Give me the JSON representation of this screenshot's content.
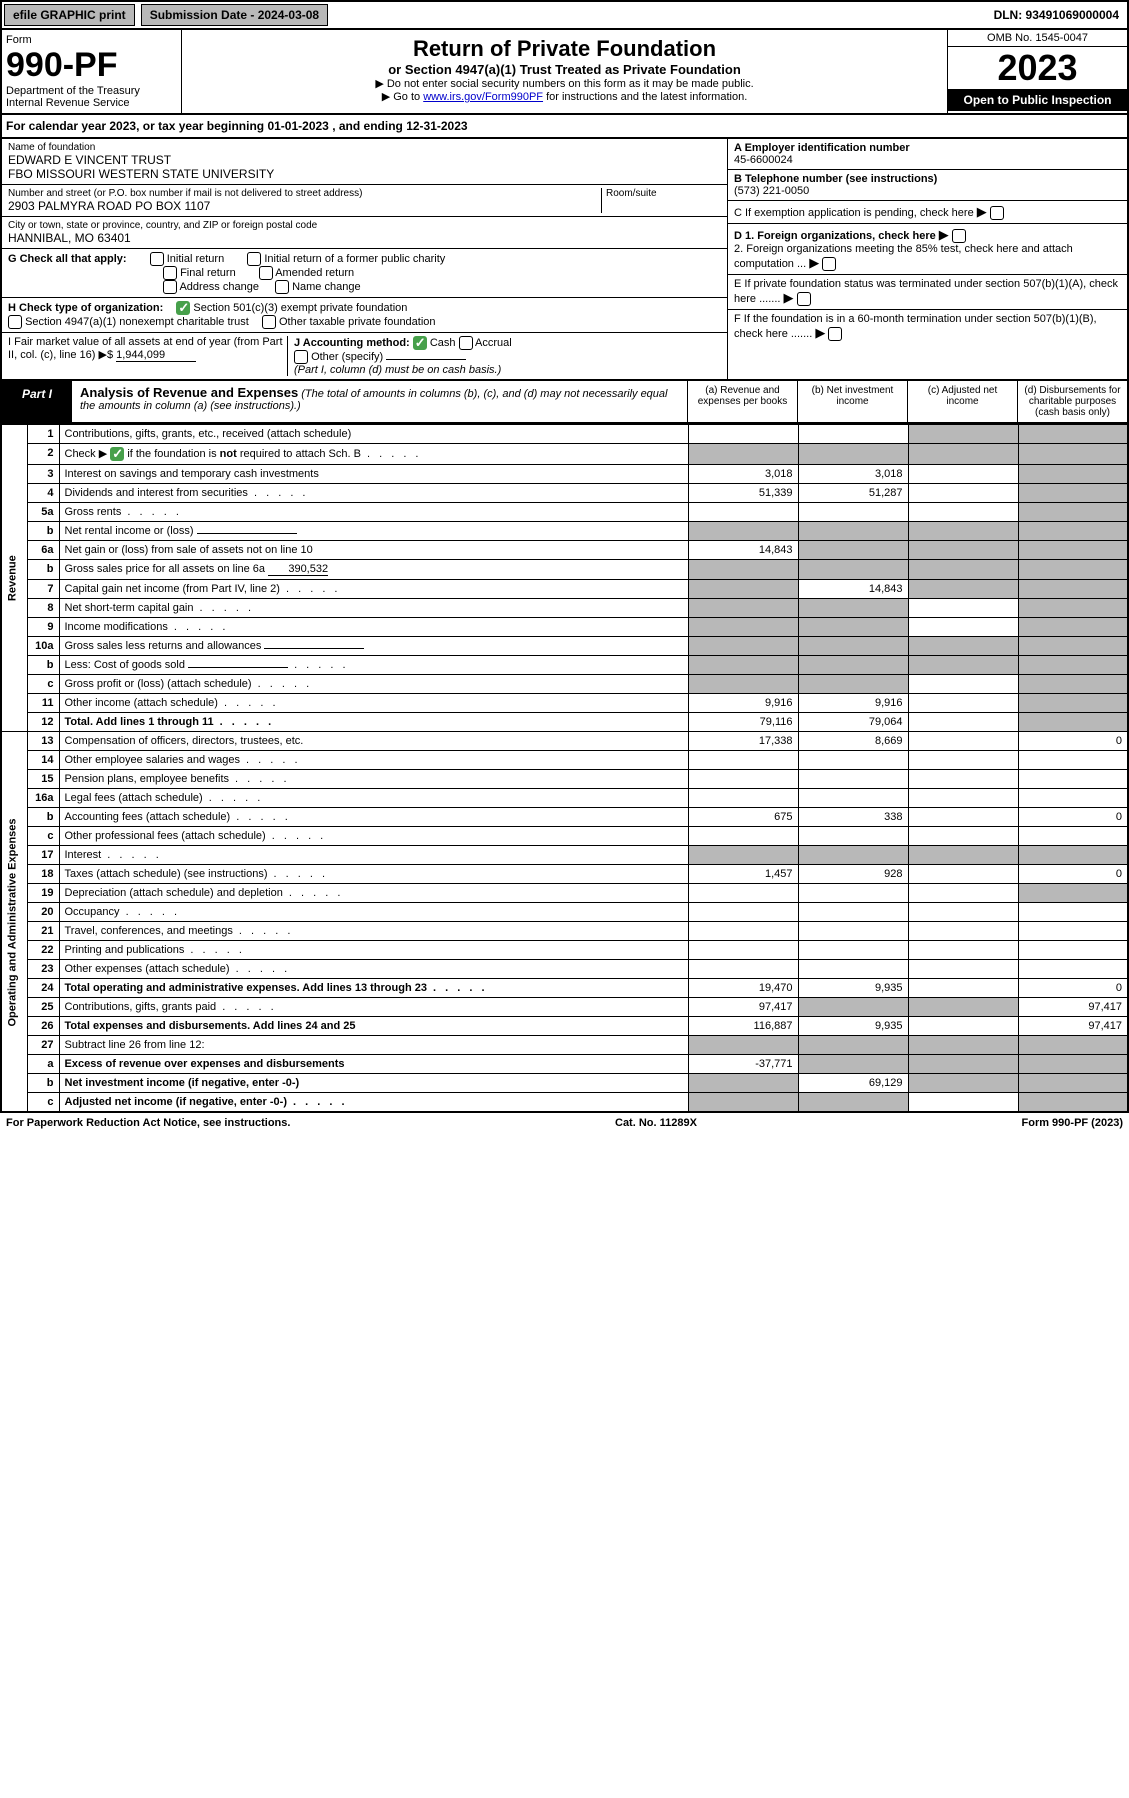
{
  "topbar": {
    "efile": "efile GRAPHIC print",
    "sub_date_label": "Submission Date - 2024-03-08",
    "dln": "DLN: 93491069000004"
  },
  "header": {
    "form_word": "Form",
    "form_num": "990-PF",
    "dept1": "Department of the Treasury",
    "dept2": "Internal Revenue Service",
    "title": "Return of Private Foundation",
    "subtitle": "or Section 4947(a)(1) Trust Treated as Private Foundation",
    "note1": "▶ Do not enter social security numbers on this form as it may be made public.",
    "note2_pre": "▶ Go to ",
    "note2_link": "www.irs.gov/Form990PF",
    "note2_post": " for instructions and the latest information.",
    "omb": "OMB No. 1545-0047",
    "year": "2023",
    "open": "Open to Public Inspection"
  },
  "cal_year": {
    "pre": "For calendar year 2023, or tax year beginning ",
    "begin": "01-01-2023",
    "mid": " , and ending ",
    "end": "12-31-2023"
  },
  "info": {
    "name_lbl": "Name of foundation",
    "name1": "EDWARD E VINCENT TRUST",
    "name2": "FBO MISSOURI WESTERN STATE UNIVERSITY",
    "addr_lbl": "Number and street (or P.O. box number if mail is not delivered to street address)",
    "addr": "2903 PALMYRA ROAD PO BOX 1107",
    "room_lbl": "Room/suite",
    "cityzip_lbl": "City or town, state or province, country, and ZIP or foreign postal code",
    "cityzip": "HANNIBAL, MO  63401",
    "a_lbl": "A Employer identification number",
    "a_val": "45-6600024",
    "b_lbl": "B Telephone number (see instructions)",
    "b_val": "(573) 221-0050",
    "c_lbl": "C If exemption application is pending, check here",
    "d1_lbl": "D 1. Foreign organizations, check here",
    "d2_lbl": "2. Foreign organizations meeting the 85% test, check here and attach computation ...",
    "e_lbl": "E If private foundation status was terminated under section 507(b)(1)(A), check here .......",
    "f_lbl": "F If the foundation is in a 60-month termination under section 507(b)(1)(B), check here .......",
    "g_lbl": "G Check all that apply:",
    "g_opts": [
      "Initial return",
      "Initial return of a former public charity",
      "Final return",
      "Amended return",
      "Address change",
      "Name change"
    ],
    "h_lbl": "H Check type of organization:",
    "h_opt1": "Section 501(c)(3) exempt private foundation",
    "h_opt2": "Section 4947(a)(1) nonexempt charitable trust",
    "h_opt3": "Other taxable private foundation",
    "i_lbl": "I Fair market value of all assets at end of year (from Part II, col. (c), line 16)",
    "i_val": "1,944,099",
    "j_lbl": "J Accounting method:",
    "j_cash": "Cash",
    "j_accrual": "Accrual",
    "j_other": "Other (specify)",
    "j_note": "(Part I, column (d) must be on cash basis.)"
  },
  "part1": {
    "label": "Part I",
    "title": "Analysis of Revenue and Expenses",
    "title_it": "(The total of amounts in columns (b), (c), and (d) may not necessarily equal the amounts in column (a) (see instructions).)",
    "col_a": "(a) Revenue and expenses per books",
    "col_b": "(b) Net investment income",
    "col_c": "(c) Adjusted net income",
    "col_d": "(d) Disbursements for charitable purposes (cash basis only)"
  },
  "side_labels": {
    "revenue": "Revenue",
    "op_admin": "Operating and Administrative Expenses"
  },
  "rows": [
    {
      "n": "1",
      "d": "Contributions, gifts, grants, etc., received (attach schedule)",
      "a": "",
      "b": "",
      "c": "shade",
      "dd": "shade"
    },
    {
      "n": "2",
      "d": "Check ▶ ☑ if the foundation is not required to attach Sch. B",
      "a": "shade",
      "b": "shade",
      "c": "shade",
      "dd": "shade",
      "checkmark": true,
      "dots": true
    },
    {
      "n": "3",
      "d": "Interest on savings and temporary cash investments",
      "a": "3,018",
      "b": "3,018",
      "c": "",
      "dd": "shade"
    },
    {
      "n": "4",
      "d": "Dividends and interest from securities",
      "a": "51,339",
      "b": "51,287",
      "c": "",
      "dd": "shade",
      "dots": true
    },
    {
      "n": "5a",
      "d": "Gross rents",
      "a": "",
      "b": "",
      "c": "",
      "dd": "shade",
      "dots": true
    },
    {
      "n": "b",
      "d": "Net rental income or (loss)",
      "a": "shade",
      "b": "shade",
      "c": "shade",
      "dd": "shade",
      "inline": true
    },
    {
      "n": "6a",
      "d": "Net gain or (loss) from sale of assets not on line 10",
      "a": "14,843",
      "b": "shade",
      "c": "shade",
      "dd": "shade"
    },
    {
      "n": "b",
      "d": "Gross sales price for all assets on line 6a",
      "a": "shade",
      "b": "shade",
      "c": "shade",
      "dd": "shade",
      "inline_val": "390,532"
    },
    {
      "n": "7",
      "d": "Capital gain net income (from Part IV, line 2)",
      "a": "shade",
      "b": "14,843",
      "c": "shade",
      "dd": "shade",
      "dots": true
    },
    {
      "n": "8",
      "d": "Net short-term capital gain",
      "a": "shade",
      "b": "shade",
      "c": "",
      "dd": "shade",
      "dots": true
    },
    {
      "n": "9",
      "d": "Income modifications",
      "a": "shade",
      "b": "shade",
      "c": "",
      "dd": "shade",
      "dots": true
    },
    {
      "n": "10a",
      "d": "Gross sales less returns and allowances",
      "a": "shade",
      "b": "shade",
      "c": "shade",
      "dd": "shade",
      "inline": true
    },
    {
      "n": "b",
      "d": "Less: Cost of goods sold",
      "a": "shade",
      "b": "shade",
      "c": "shade",
      "dd": "shade",
      "inline": true,
      "dots": true
    },
    {
      "n": "c",
      "d": "Gross profit or (loss) (attach schedule)",
      "a": "shade",
      "b": "shade",
      "c": "",
      "dd": "shade",
      "dots": true
    },
    {
      "n": "11",
      "d": "Other income (attach schedule)",
      "a": "9,916",
      "b": "9,916",
      "c": "",
      "dd": "shade",
      "dots": true
    },
    {
      "n": "12",
      "d": "Total. Add lines 1 through 11",
      "a": "79,116",
      "b": "79,064",
      "c": "",
      "dd": "shade",
      "bold": true,
      "dots": true
    },
    {
      "n": "13",
      "d": "Compensation of officers, directors, trustees, etc.",
      "a": "17,338",
      "b": "8,669",
      "c": "",
      "dd": "0"
    },
    {
      "n": "14",
      "d": "Other employee salaries and wages",
      "a": "",
      "b": "",
      "c": "",
      "dd": "",
      "dots": true
    },
    {
      "n": "15",
      "d": "Pension plans, employee benefits",
      "a": "",
      "b": "",
      "c": "",
      "dd": "",
      "dots": true
    },
    {
      "n": "16a",
      "d": "Legal fees (attach schedule)",
      "a": "",
      "b": "",
      "c": "",
      "dd": "",
      "dots": true
    },
    {
      "n": "b",
      "d": "Accounting fees (attach schedule)",
      "a": "675",
      "b": "338",
      "c": "",
      "dd": "0",
      "dots": true
    },
    {
      "n": "c",
      "d": "Other professional fees (attach schedule)",
      "a": "",
      "b": "",
      "c": "",
      "dd": "",
      "dots": true
    },
    {
      "n": "17",
      "d": "Interest",
      "a": "shade",
      "b": "shade",
      "c": "shade",
      "dd": "shade",
      "dots": true
    },
    {
      "n": "18",
      "d": "Taxes (attach schedule) (see instructions)",
      "a": "1,457",
      "b": "928",
      "c": "",
      "dd": "0",
      "dots": true
    },
    {
      "n": "19",
      "d": "Depreciation (attach schedule) and depletion",
      "a": "",
      "b": "",
      "c": "",
      "dd": "shade",
      "dots": true
    },
    {
      "n": "20",
      "d": "Occupancy",
      "a": "",
      "b": "",
      "c": "",
      "dd": "",
      "dots": true
    },
    {
      "n": "21",
      "d": "Travel, conferences, and meetings",
      "a": "",
      "b": "",
      "c": "",
      "dd": "",
      "dots": true
    },
    {
      "n": "22",
      "d": "Printing and publications",
      "a": "",
      "b": "",
      "c": "",
      "dd": "",
      "dots": true
    },
    {
      "n": "23",
      "d": "Other expenses (attach schedule)",
      "a": "",
      "b": "",
      "c": "",
      "dd": "",
      "dots": true
    },
    {
      "n": "24",
      "d": "Total operating and administrative expenses. Add lines 13 through 23",
      "a": "19,470",
      "b": "9,935",
      "c": "",
      "dd": "0",
      "bold": true,
      "dots": true
    },
    {
      "n": "25",
      "d": "Contributions, gifts, grants paid",
      "a": "97,417",
      "b": "shade",
      "c": "shade",
      "dd": "97,417",
      "dots": true
    },
    {
      "n": "26",
      "d": "Total expenses and disbursements. Add lines 24 and 25",
      "a": "116,887",
      "b": "9,935",
      "c": "",
      "dd": "97,417",
      "bold": true
    },
    {
      "n": "27",
      "d": "Subtract line 26 from line 12:",
      "a": "shade",
      "b": "shade",
      "c": "shade",
      "dd": "shade"
    },
    {
      "n": "a",
      "d": "Excess of revenue over expenses and disbursements",
      "a": "-37,771",
      "b": "shade",
      "c": "shade",
      "dd": "shade",
      "bold": true
    },
    {
      "n": "b",
      "d": "Net investment income (if negative, enter -0-)",
      "a": "shade",
      "b": "69,129",
      "c": "shade",
      "dd": "shade",
      "bold": true
    },
    {
      "n": "c",
      "d": "Adjusted net income (if negative, enter -0-)",
      "a": "shade",
      "b": "shade",
      "c": "",
      "dd": "shade",
      "bold": true,
      "dots": true
    }
  ],
  "footer": {
    "left": "For Paperwork Reduction Act Notice, see instructions.",
    "mid": "Cat. No. 11289X",
    "right": "Form 990-PF (2023)"
  }
}
